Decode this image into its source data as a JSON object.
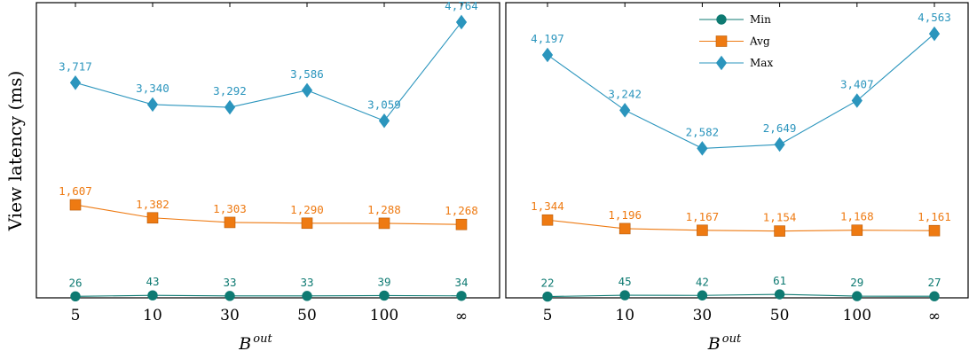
{
  "colors": {
    "min": "#0e7a72",
    "avg": "#ee7a12",
    "max": "#2b95bd",
    "axis": "#000000"
  },
  "figure": {
    "ylabel": "View latency (ms)",
    "xlabel_base": "B",
    "xlabel_sup": "out"
  },
  "chart_data": [
    {
      "type": "line",
      "categories": [
        "5",
        "10",
        "30",
        "50",
        "100",
        "∞"
      ],
      "ylabel": "View latency (ms)",
      "xlabel": "B^out",
      "ylim": [
        0,
        5100
      ],
      "legend": "none",
      "series": [
        {
          "name": "Min",
          "marker": "circle",
          "values": [
            26,
            43,
            33,
            33,
            39,
            34
          ],
          "labels": [
            "26",
            "43",
            "33",
            "33",
            "39",
            "34"
          ]
        },
        {
          "name": "Avg",
          "marker": "square",
          "values": [
            1607,
            1382,
            1303,
            1290,
            1288,
            1268
          ],
          "labels": [
            "1,607",
            "1,382",
            "1,303",
            "1,290",
            "1,288",
            "1,268"
          ]
        },
        {
          "name": "Max",
          "marker": "diamond",
          "values": [
            3717,
            3340,
            3292,
            3586,
            3059,
            4764
          ],
          "labels": [
            "3,717",
            "3,340",
            "3,292",
            "3,586",
            "3,059",
            "4,764"
          ]
        }
      ]
    },
    {
      "type": "line",
      "categories": [
        "5",
        "10",
        "30",
        "50",
        "100",
        "∞"
      ],
      "ylabel": "",
      "xlabel": "B^out",
      "ylim": [
        0,
        5100
      ],
      "legend": "top-center",
      "series": [
        {
          "name": "Min",
          "marker": "circle",
          "values": [
            22,
            45,
            42,
            61,
            29,
            27
          ],
          "labels": [
            "22",
            "45",
            "42",
            "61",
            "29",
            "27"
          ]
        },
        {
          "name": "Avg",
          "marker": "square",
          "values": [
            1344,
            1196,
            1167,
            1154,
            1168,
            1161
          ],
          "labels": [
            "1,344",
            "1,196",
            "1,167",
            "1,154",
            "1,168",
            "1,161"
          ]
        },
        {
          "name": "Max",
          "marker": "diamond",
          "values": [
            4197,
            3242,
            2582,
            2649,
            3407,
            4563
          ],
          "labels": [
            "4,197",
            "3,242",
            "2,582",
            "2,649",
            "3,407",
            "4,563"
          ]
        }
      ]
    }
  ]
}
